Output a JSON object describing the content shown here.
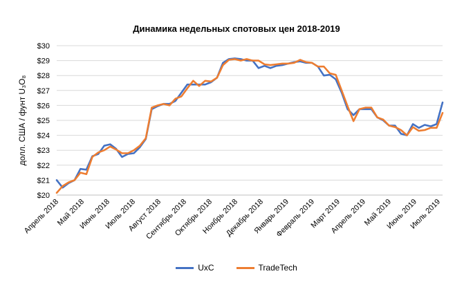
{
  "chart_data": {
    "type": "line",
    "title": "Динамика недельных спотовых цен 2018-2019",
    "ylabel": "долл. США / фунт U₃O₈",
    "ylim": [
      20,
      30
    ],
    "yticks": [
      "$20",
      "$21",
      "$22",
      "$23",
      "$24",
      "$25",
      "$26",
      "$27",
      "$28",
      "$29",
      "$30"
    ],
    "xlabels": [
      "Апрель 2018",
      "Май 2018",
      "Июнь 2018",
      "Июль 2018",
      "Август 2018",
      "Сентябрь 2018",
      "Октябрь 2018",
      "Ноябрь 2018",
      "Декабрь 2018",
      "Январь 2019",
      "Февраль 2019",
      "Март 2019",
      "Апрель 2019",
      "Май 2019",
      "Июнь 2019",
      "Июль 2019"
    ],
    "grid": true,
    "legend_position": "bottom",
    "series": [
      {
        "name": "UxC",
        "color": "#4472C4",
        "values": [
          21.0,
          20.5,
          20.8,
          21.0,
          21.75,
          21.7,
          22.6,
          22.75,
          23.3,
          23.4,
          23.1,
          22.55,
          22.75,
          22.8,
          23.2,
          23.75,
          25.75,
          25.95,
          26.1,
          26.1,
          26.3,
          26.85,
          27.4,
          27.4,
          27.4,
          27.4,
          27.55,
          27.85,
          28.85,
          29.1,
          29.15,
          29.1,
          29.0,
          29.0,
          28.5,
          28.65,
          28.5,
          28.65,
          28.7,
          28.8,
          28.9,
          28.95,
          28.85,
          28.85,
          28.6,
          28.0,
          28.05,
          27.75,
          26.85,
          25.75,
          25.35,
          25.75,
          25.75,
          25.75,
          25.2,
          25.0,
          24.65,
          24.65,
          24.1,
          24.0,
          24.75,
          24.5,
          24.7,
          24.6,
          24.75,
          26.2
        ]
      },
      {
        "name": "TradeTech",
        "color": "#ED7D31",
        "values": [
          20.15,
          20.6,
          20.85,
          21.0,
          21.5,
          21.4,
          22.55,
          22.85,
          23.0,
          23.25,
          23.05,
          22.8,
          22.8,
          23.0,
          23.3,
          23.8,
          25.85,
          26.0,
          26.1,
          26.0,
          26.45,
          26.6,
          27.15,
          27.65,
          27.3,
          27.65,
          27.6,
          27.85,
          28.7,
          29.05,
          29.1,
          29.0,
          29.1,
          29.0,
          29.0,
          28.75,
          28.7,
          28.75,
          28.8,
          28.8,
          28.85,
          29.05,
          28.9,
          28.85,
          28.6,
          28.6,
          28.15,
          28.05,
          27.0,
          25.95,
          24.95,
          25.75,
          25.85,
          25.85,
          25.2,
          25.05,
          24.65,
          24.55,
          24.35,
          24.0,
          24.55,
          24.3,
          24.35,
          24.5,
          24.5,
          25.5
        ]
      }
    ]
  }
}
